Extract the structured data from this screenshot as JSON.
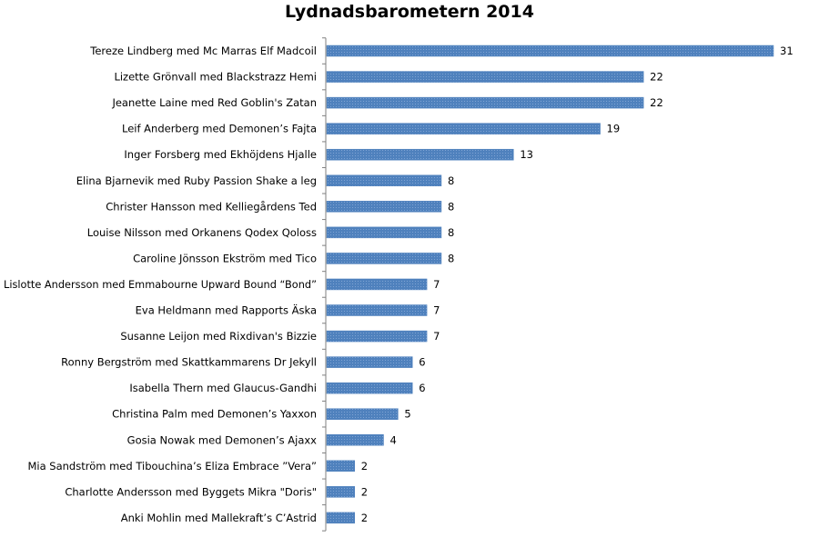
{
  "chart_data": {
    "type": "bar",
    "orientation": "horizontal",
    "title": "Lydnadsbarometern 2014",
    "xlabel": "",
    "ylabel": "",
    "grid": false,
    "legend": "none",
    "bar_color": "#4f81bd",
    "categories": [
      "Tereze Lindberg med Mc Marras Elf Madcoil",
      "Lizette  Grönvall med Blackstrazz Hemi",
      "Jeanette Laine med Red Goblin's Zatan",
      "Leif Anderberg med Demonen’s Fajta",
      "Inger Forsberg med Ekhöjdens Hjalle",
      "Elina Bjarnevik med Ruby Passion Shake a leg",
      "Christer Hansson med Kelliegårdens Ted",
      "Louise Nilsson med Orkanens Qodex Qoloss",
      "Caroline Jönsson Ekström med Tico",
      "Lislotte Andersson med Emmabourne Upward Bound “Bond”",
      "Eva Heldmann med Rapports Äska",
      "Susanne Leijon med Rixdivan's Bizzie",
      "Ronny Bergström med Skattkammarens Dr Jekyll",
      "Isabella Thern med Glaucus-Gandhi",
      "Christina Palm med Demonen’s Yaxxon",
      "Gosia Nowak med Demonen’s Ajaxx",
      "Mia Sandström med Tibouchina’s Eliza Embrace ”Vera”",
      "Charlotte Andersson med Byggets Mikra \"Doris\"",
      "Anki Mohlin med Mallekraft’s C’Astrid"
    ],
    "values": [
      31,
      22,
      22,
      19,
      13,
      8,
      8,
      8,
      8,
      7,
      7,
      7,
      6,
      6,
      5,
      4,
      2,
      2,
      2
    ],
    "xlim": [
      0,
      31
    ]
  }
}
